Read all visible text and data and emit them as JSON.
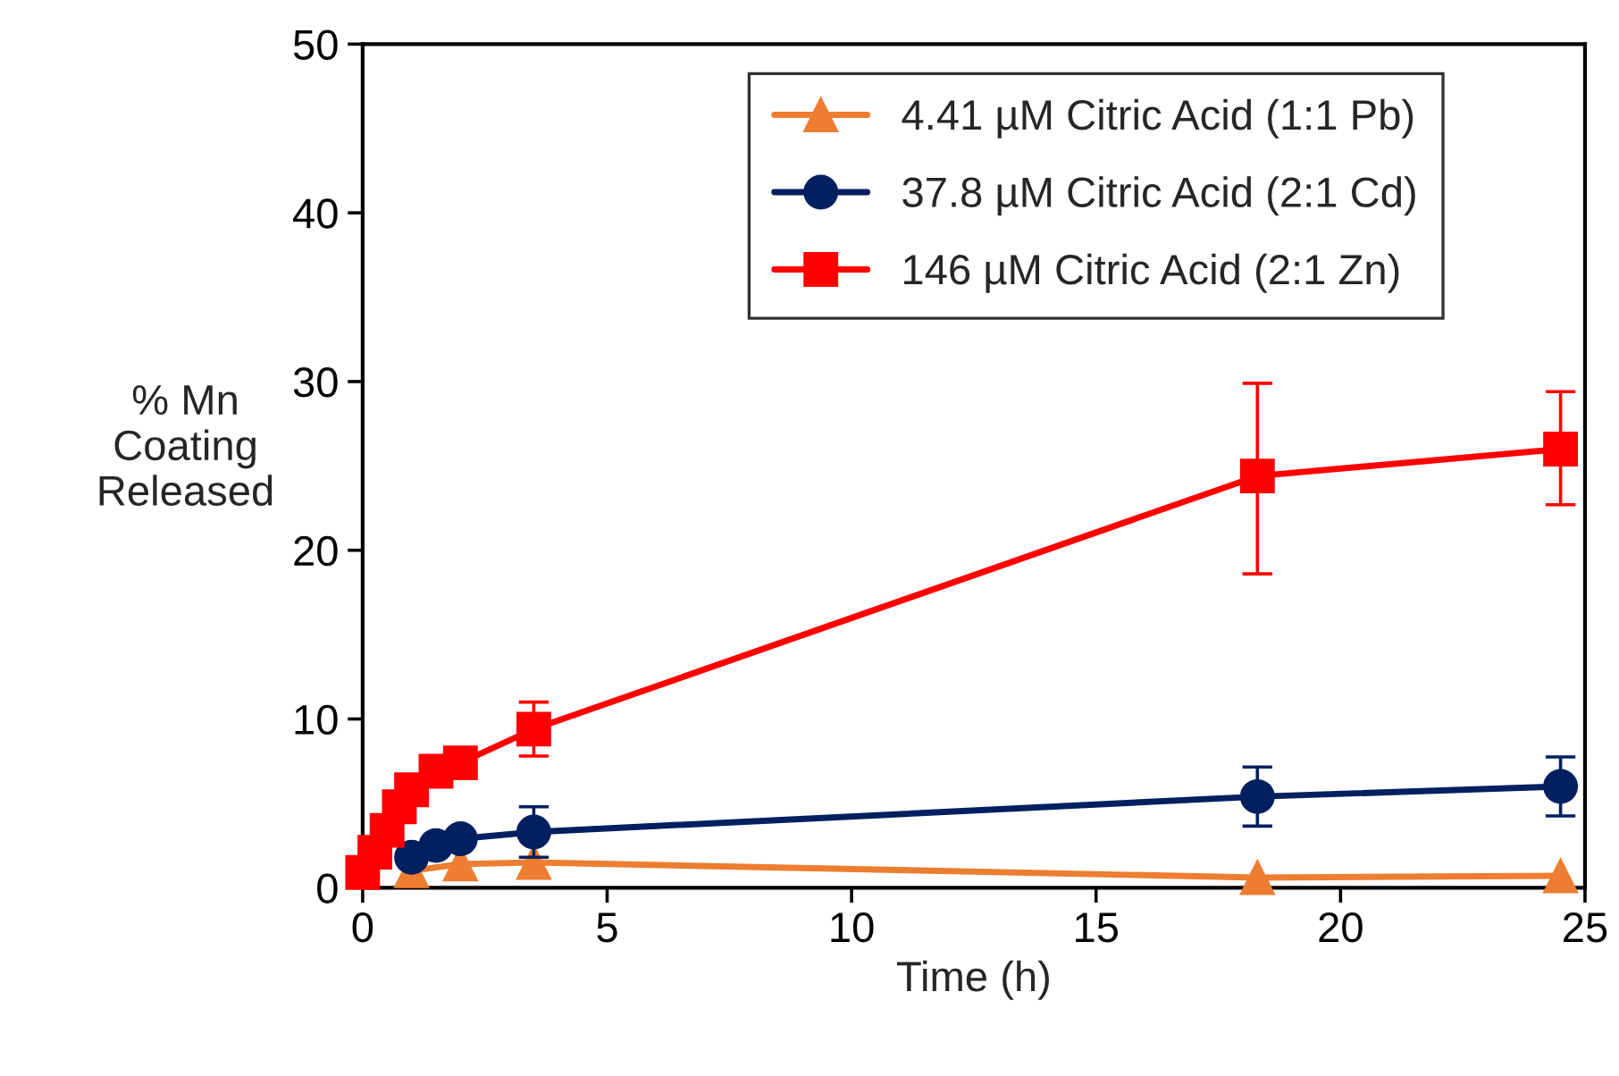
{
  "chart_data": {
    "type": "line",
    "xlabel": "Time (h)",
    "ylabel": "% Mn\nCoating\nReleased",
    "xlim": [
      0,
      25
    ],
    "xticks": [
      0,
      5,
      10,
      15,
      20,
      25
    ],
    "ylim": [
      0,
      50
    ],
    "yticks": [
      0,
      10,
      20,
      30,
      40,
      50
    ],
    "grid": false,
    "legend": "top",
    "line_style": "solid",
    "series": [
      {
        "name": "4.41 µM Citric Acid (1:1 Pb)",
        "color": "#ed7d31",
        "marker": "triangle",
        "x": [
          1,
          2,
          3.5,
          18.3,
          24.5
        ],
        "values": [
          1.0,
          1.4,
          1.5,
          0.6,
          0.7
        ]
      },
      {
        "name": "37.8 µM Citric Acid (2:1 Cd)",
        "color": "#002060",
        "marker": "circle",
        "x": [
          1,
          1.5,
          2,
          3.5,
          18.3,
          24.5
        ],
        "values": [
          1.8,
          2.5,
          2.9,
          3.3,
          5.4,
          6.0
        ],
        "errors": [
          null,
          null,
          null,
          1.5,
          1.75,
          1.75
        ]
      },
      {
        "name": "146 µM Citric Acid (2:1 Zn)",
        "color": "#ff0000",
        "marker": "square",
        "x": [
          0,
          0.25,
          0.5,
          0.75,
          1,
          1.5,
          2,
          3.5,
          18.3,
          24.5
        ],
        "values": [
          0.9,
          2.1,
          3.4,
          4.8,
          5.8,
          6.9,
          7.4,
          9.4,
          24.4,
          26.0
        ],
        "errors": [
          null,
          null,
          null,
          null,
          null,
          null,
          null,
          1.6,
          [
            18.6,
            29.9
          ],
          [
            22.7,
            29.4
          ]
        ]
      }
    ]
  }
}
